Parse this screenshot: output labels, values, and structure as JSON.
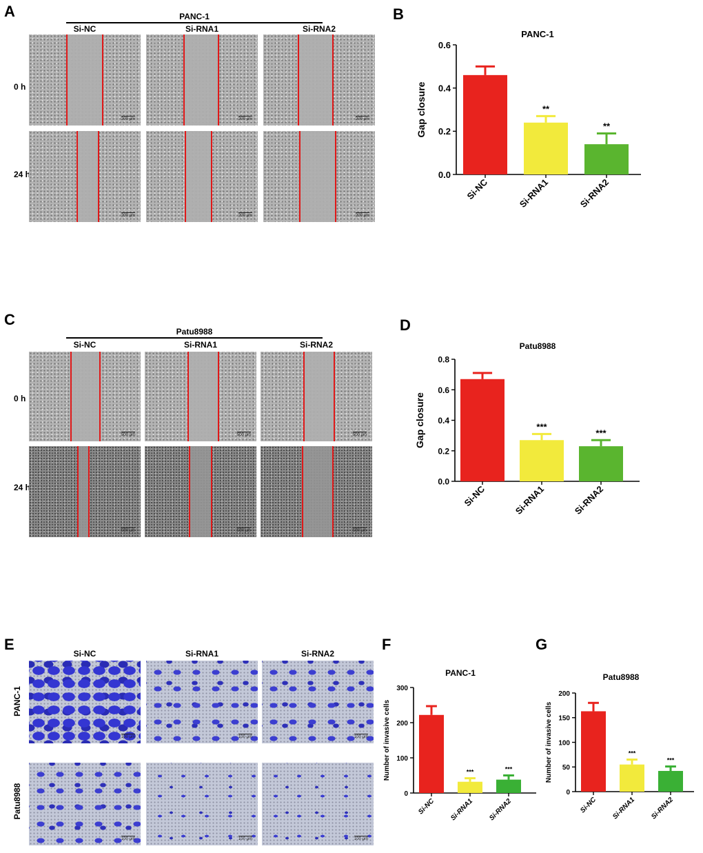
{
  "panel_labels": {
    "A": "A",
    "B": "B",
    "C": "C",
    "D": "D",
    "E": "E",
    "F": "F",
    "G": "G"
  },
  "panel_a": {
    "title": "PANC-1",
    "columns": [
      "Si-NC",
      "Si-RNA1",
      "Si-RNA2"
    ],
    "rows": [
      "0 h",
      "24 h"
    ],
    "scale_label": "200 μm"
  },
  "panel_c": {
    "title": "Patu8988",
    "columns": [
      "Si-NC",
      "Si-RNA1",
      "Si-RNA2"
    ],
    "rows": [
      "0 h",
      "24 h"
    ],
    "scale_label": "500 μm"
  },
  "panel_e": {
    "columns": [
      "Si-NC",
      "Si-RNA1",
      "Si-RNA2"
    ],
    "rows": [
      "PANC-1",
      "Patu8988"
    ],
    "scale_label": "100 μm"
  },
  "colors": {
    "red": "#e8231e",
    "yellow": "#f2ea3c",
    "green": "#5ab52f"
  },
  "chart_data": [
    {
      "id": "B",
      "type": "bar",
      "title": "PANC-1",
      "ylabel": "Gap closure",
      "xlabel": "",
      "categories": [
        "Si-NC",
        "Si-RNA1",
        "Si-RNA2"
      ],
      "values": [
        0.46,
        0.24,
        0.14
      ],
      "errors": [
        0.04,
        0.03,
        0.05
      ],
      "significance": [
        "",
        "**",
        "**"
      ],
      "ylim": [
        0,
        0.6
      ],
      "yticks": [
        "0.0",
        "0.2",
        "0.4",
        "0.6"
      ],
      "ytick_values": [
        0,
        0.2,
        0.4,
        0.6
      ],
      "colors": [
        "#e8231e",
        "#f2ea3c",
        "#5ab52f"
      ]
    },
    {
      "id": "D",
      "type": "bar",
      "title": "Patu8988",
      "ylabel": "Gap closure",
      "xlabel": "",
      "categories": [
        "Si-NC",
        "Si-RNA1",
        "Si-RNA2"
      ],
      "values": [
        0.67,
        0.27,
        0.23
      ],
      "errors": [
        0.04,
        0.04,
        0.04
      ],
      "significance": [
        "",
        "***",
        "***"
      ],
      "ylim": [
        0,
        0.8
      ],
      "yticks": [
        "0.0",
        "0.2",
        "0.4",
        "0.6",
        "0.8"
      ],
      "ytick_values": [
        0,
        0.2,
        0.4,
        0.6,
        0.8
      ],
      "colors": [
        "#e8231e",
        "#f2ea3c",
        "#5ab52f"
      ]
    },
    {
      "id": "F",
      "type": "bar",
      "title": "PANC-1",
      "ylabel": "Number of invasive cells",
      "xlabel": "",
      "categories": [
        "Si-NC",
        "Si-RNA1",
        "Si-RNA2"
      ],
      "values": [
        222,
        32,
        38
      ],
      "errors": [
        25,
        10,
        12
      ],
      "significance": [
        "",
        "***",
        "***"
      ],
      "ylim": [
        0,
        300
      ],
      "yticks": [
        "0",
        "100",
        "200",
        "300"
      ],
      "ytick_values": [
        0,
        100,
        200,
        300
      ],
      "colors": [
        "#e8231e",
        "#f2ea3c",
        "#3ab035"
      ]
    },
    {
      "id": "G",
      "type": "bar",
      "title": "Patu8988",
      "ylabel": "Number of invasive cells",
      "xlabel": "",
      "categories": [
        "Si-NC",
        "Si-RNA1",
        "Si-RNA2"
      ],
      "values": [
        163,
        55,
        42
      ],
      "errors": [
        17,
        10,
        9
      ],
      "significance": [
        "",
        "***",
        "***"
      ],
      "ylim": [
        0,
        200
      ],
      "yticks": [
        "0",
        "50",
        "100",
        "150",
        "200"
      ],
      "ytick_values": [
        0,
        50,
        100,
        150,
        200
      ],
      "colors": [
        "#e8231e",
        "#f2ea3c",
        "#3ab035"
      ]
    }
  ]
}
